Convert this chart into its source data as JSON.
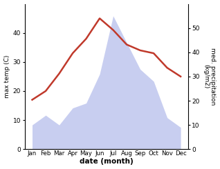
{
  "months": [
    "Jan",
    "Feb",
    "Mar",
    "Apr",
    "May",
    "Jun",
    "Jul",
    "Aug",
    "Sep",
    "Oct",
    "Nov",
    "Dec"
  ],
  "temperature": [
    17,
    20,
    26,
    33,
    38,
    45,
    41,
    36,
    34,
    33,
    28,
    25
  ],
  "precipitation": [
    10,
    14,
    10,
    17,
    19,
    31,
    55,
    44,
    33,
    28,
    13,
    9
  ],
  "temp_color": "#c0392b",
  "precip_fill_color": "#c8cef0",
  "ylabel_left": "max temp (C)",
  "ylabel_right": "med. precipitation\n(kg/m2)",
  "xlabel": "date (month)",
  "ylim_left": [
    0,
    50
  ],
  "ylim_right": [
    0,
    60
  ],
  "yticks_left": [
    0,
    10,
    20,
    30,
    40
  ],
  "yticks_right": [
    0,
    10,
    20,
    30,
    40,
    50
  ],
  "background_color": "#ffffff"
}
